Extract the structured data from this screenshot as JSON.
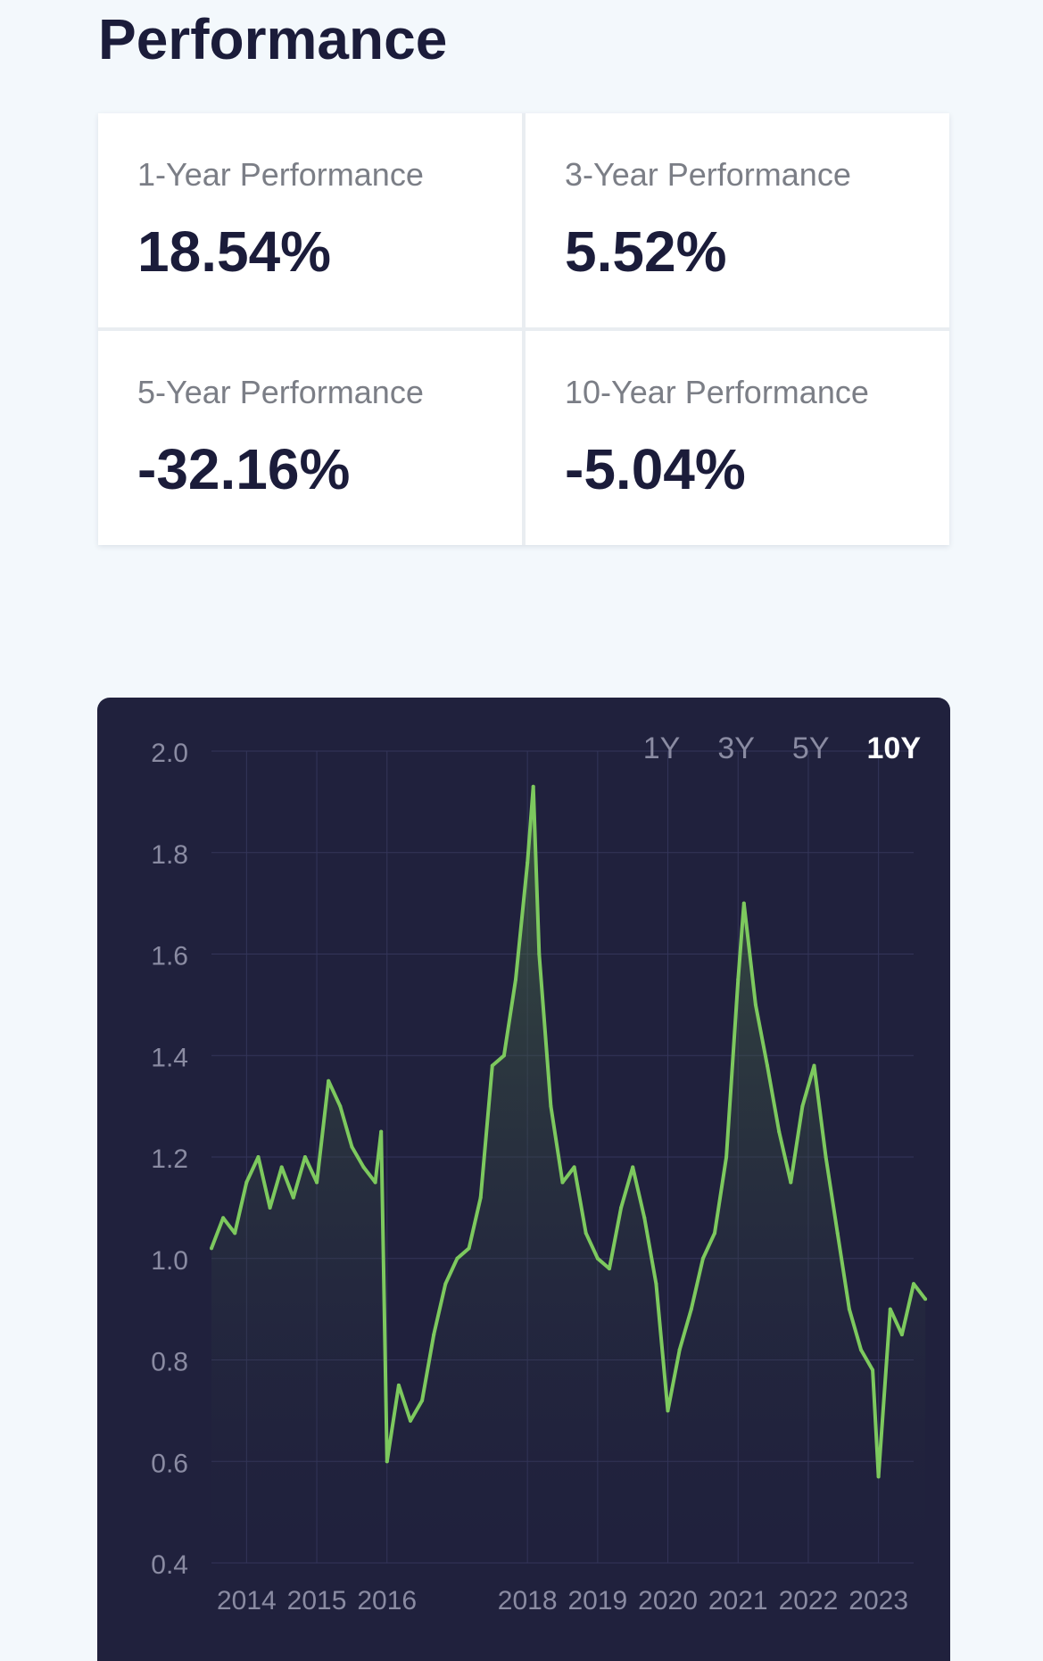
{
  "page": {
    "title": "Performance"
  },
  "stats": [
    {
      "label": "1-Year Performance",
      "value": "18.54%"
    },
    {
      "label": "3-Year Performance",
      "value": "5.52%"
    },
    {
      "label": "5-Year Performance",
      "value": "-32.16%"
    },
    {
      "label": "10-Year Performance",
      "value": "-5.04%"
    }
  ],
  "range_tabs": [
    {
      "label": "1Y",
      "active": false
    },
    {
      "label": "3Y",
      "active": false
    },
    {
      "label": "5Y",
      "active": false
    },
    {
      "label": "10Y",
      "active": true
    }
  ],
  "colors": {
    "panel_bg": "#20213d",
    "line": "#7dc95e",
    "grid": "#34355a",
    "tick_text": "#8a8ba2"
  },
  "chart_data": {
    "type": "area",
    "title": "",
    "xlabel": "",
    "ylabel": "",
    "ylim": [
      0.4,
      2.0
    ],
    "yticks": [
      "0.4",
      "0.6",
      "0.8",
      "1.0",
      "1.2",
      "1.4",
      "1.6",
      "1.8",
      "2.0"
    ],
    "xticks": [
      "2014",
      "2015",
      "2016",
      "2018",
      "2019",
      "2020",
      "2021",
      "2022",
      "2023"
    ],
    "grid": true,
    "series": [
      {
        "x": [
          "2013-07",
          "2013-09",
          "2013-11",
          "2014-01",
          "2014-03",
          "2014-05",
          "2014-07",
          "2014-09",
          "2014-11",
          "2015-01",
          "2015-03",
          "2015-05",
          "2015-07",
          "2015-09",
          "2015-11",
          "2015-12",
          "2016-01",
          "2016-03",
          "2016-05",
          "2016-07",
          "2016-09",
          "2016-11",
          "2017-01",
          "2017-03",
          "2017-05",
          "2017-07",
          "2017-09",
          "2017-11",
          "2018-01",
          "2018-02",
          "2018-03",
          "2018-05",
          "2018-07",
          "2018-09",
          "2018-11",
          "2019-01",
          "2019-03",
          "2019-05",
          "2019-07",
          "2019-09",
          "2019-11",
          "2020-01",
          "2020-03",
          "2020-05",
          "2020-07",
          "2020-09",
          "2020-11",
          "2021-01",
          "2021-02",
          "2021-04",
          "2021-06",
          "2021-08",
          "2021-10",
          "2021-12",
          "2022-02",
          "2022-04",
          "2022-06",
          "2022-08",
          "2022-10",
          "2022-12",
          "2023-01",
          "2023-03",
          "2023-05",
          "2023-07",
          "2023-09"
        ],
        "y": [
          1.02,
          1.08,
          1.05,
          1.15,
          1.2,
          1.1,
          1.18,
          1.12,
          1.2,
          1.15,
          1.35,
          1.3,
          1.22,
          1.18,
          1.15,
          1.25,
          0.6,
          0.75,
          0.68,
          0.72,
          0.85,
          0.95,
          1.0,
          1.02,
          1.12,
          1.38,
          1.4,
          1.55,
          1.78,
          1.93,
          1.6,
          1.3,
          1.15,
          1.18,
          1.05,
          1.0,
          0.98,
          1.1,
          1.18,
          1.08,
          0.95,
          0.7,
          0.82,
          0.9,
          1.0,
          1.05,
          1.2,
          1.55,
          1.7,
          1.5,
          1.38,
          1.25,
          1.15,
          1.3,
          1.38,
          1.2,
          1.05,
          0.9,
          0.82,
          0.78,
          0.57,
          0.9,
          0.85,
          0.95,
          0.92
        ]
      }
    ]
  }
}
